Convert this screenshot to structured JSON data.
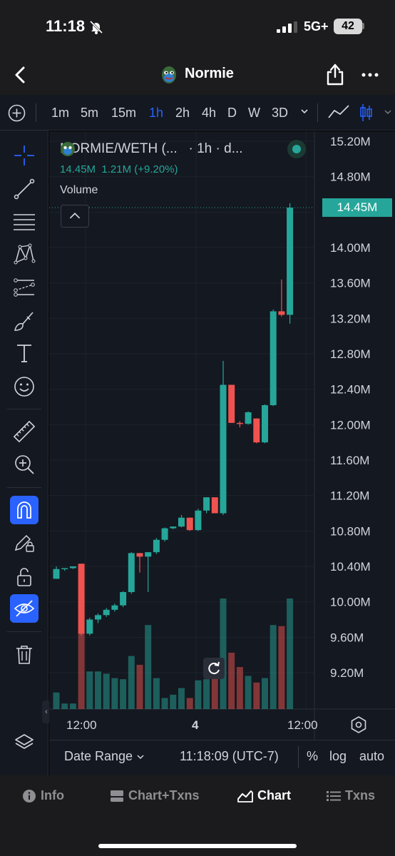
{
  "status_bar": {
    "time": "11:18",
    "network": "5G+",
    "battery": "42"
  },
  "header": {
    "title": "Normie"
  },
  "intervals": [
    {
      "label": "1m",
      "active": false
    },
    {
      "label": "5m",
      "active": false
    },
    {
      "label": "15m",
      "active": false
    },
    {
      "label": "1h",
      "active": true
    },
    {
      "label": "2h",
      "active": false
    },
    {
      "label": "4h",
      "active": false
    },
    {
      "label": "D",
      "active": false
    },
    {
      "label": "W",
      "active": false
    },
    {
      "label": "3D",
      "active": false
    }
  ],
  "legend": {
    "symbol": "NORMIE/WETH (...",
    "interval_source": "· 1h · d...",
    "last_value": "14.45M",
    "change": "1.21M (+9.20%)",
    "volume_label": "Volume"
  },
  "last_price_label": "14.45M",
  "price_axis_labels": [
    "15.20M",
    "14.80M",
    "14.00M",
    "13.60M",
    "13.20M",
    "12.80M",
    "12.40M",
    "12.00M",
    "11.60M",
    "11.20M",
    "10.80M",
    "10.40M",
    "10.00M",
    "9.60M",
    "9.20M"
  ],
  "time_axis_labels": [
    "12:00",
    "4",
    "12:00"
  ],
  "bottom_strip": {
    "date_range": "Date Range",
    "clock": "11:18:09 (UTC-7)",
    "percent": "%",
    "log": "log",
    "auto": "auto"
  },
  "tabs": [
    {
      "label": "Info",
      "icon": "info-icon",
      "active": false
    },
    {
      "label": "Chart+Txns",
      "icon": "chart-txns-icon",
      "active": false
    },
    {
      "label": "Chart",
      "icon": "chart-icon",
      "active": true
    },
    {
      "label": "Txns",
      "icon": "list-icon",
      "active": false
    }
  ],
  "colors": {
    "up": "#26a69a",
    "down": "#ef5350",
    "accent": "#2962ff",
    "background": "#141820"
  },
  "chart_data": {
    "type": "candlestick",
    "pair": "NORMIE/WETH",
    "interval": "1h",
    "price_unit": "M",
    "ylim": [
      9.0,
      15.4
    ],
    "candles": [
      {
        "o": 10.26,
        "h": 10.4,
        "l": 10.26,
        "c": 10.37
      },
      {
        "o": 10.37,
        "h": 10.38,
        "l": 10.35,
        "c": 10.38
      },
      {
        "o": 10.38,
        "h": 10.4,
        "l": 10.37,
        "c": 10.4
      },
      {
        "o": 10.43,
        "h": 10.43,
        "l": 9.62,
        "c": 9.64
      },
      {
        "o": 9.64,
        "h": 9.82,
        "l": 9.62,
        "c": 9.8
      },
      {
        "o": 9.8,
        "h": 9.87,
        "l": 9.76,
        "c": 9.85
      },
      {
        "o": 9.85,
        "h": 9.93,
        "l": 9.83,
        "c": 9.91
      },
      {
        "o": 9.91,
        "h": 9.98,
        "l": 9.89,
        "c": 9.96
      },
      {
        "o": 9.96,
        "h": 10.12,
        "l": 9.94,
        "c": 10.11
      },
      {
        "o": 10.11,
        "h": 10.56,
        "l": 10.09,
        "c": 10.55
      },
      {
        "o": 10.55,
        "h": 10.55,
        "l": 10.33,
        "c": 10.51
      },
      {
        "o": 10.51,
        "h": 10.56,
        "l": 10.11,
        "c": 10.56
      },
      {
        "o": 10.56,
        "h": 10.72,
        "l": 10.54,
        "c": 10.7
      },
      {
        "o": 10.7,
        "h": 10.84,
        "l": 10.68,
        "c": 10.83
      },
      {
        "o": 10.83,
        "h": 10.85,
        "l": 10.82,
        "c": 10.85
      },
      {
        "o": 10.85,
        "h": 10.98,
        "l": 10.84,
        "c": 10.95
      },
      {
        "o": 10.95,
        "h": 10.95,
        "l": 10.8,
        "c": 10.81
      },
      {
        "o": 10.81,
        "h": 11.05,
        "l": 10.8,
        "c": 11.03
      },
      {
        "o": 11.03,
        "h": 11.18,
        "l": 11.0,
        "c": 11.18
      },
      {
        "o": 11.18,
        "h": 11.18,
        "l": 11.0,
        "c": 11.0
      },
      {
        "o": 11.0,
        "h": 12.72,
        "l": 10.98,
        "c": 12.45
      },
      {
        "o": 12.45,
        "h": 12.45,
        "l": 12.02,
        "c": 12.02
      },
      {
        "o": 12.02,
        "h": 12.04,
        "l": 11.97,
        "c": 12.01
      },
      {
        "o": 12.01,
        "h": 12.15,
        "l": 12.0,
        "c": 12.14
      },
      {
        "o": 12.07,
        "h": 12.07,
        "l": 11.79,
        "c": 11.8
      },
      {
        "o": 11.8,
        "h": 12.23,
        "l": 11.79,
        "c": 12.22
      },
      {
        "o": 12.22,
        "h": 13.3,
        "l": 12.21,
        "c": 13.28
      },
      {
        "o": 13.28,
        "h": 13.64,
        "l": 13.22,
        "c": 13.24
      },
      {
        "o": 13.24,
        "h": 14.5,
        "l": 13.14,
        "c": 14.45
      }
    ],
    "volume": [
      0.15,
      0.05,
      0.05,
      1.0,
      0.34,
      0.34,
      0.32,
      0.28,
      0.27,
      0.48,
      0.4,
      0.76,
      0.28,
      0.1,
      0.13,
      0.19,
      0.1,
      0.26,
      0.27,
      0.28,
      1.0,
      0.51,
      0.38,
      0.3,
      0.24,
      0.28,
      0.76,
      0.75,
      1.0
    ]
  }
}
